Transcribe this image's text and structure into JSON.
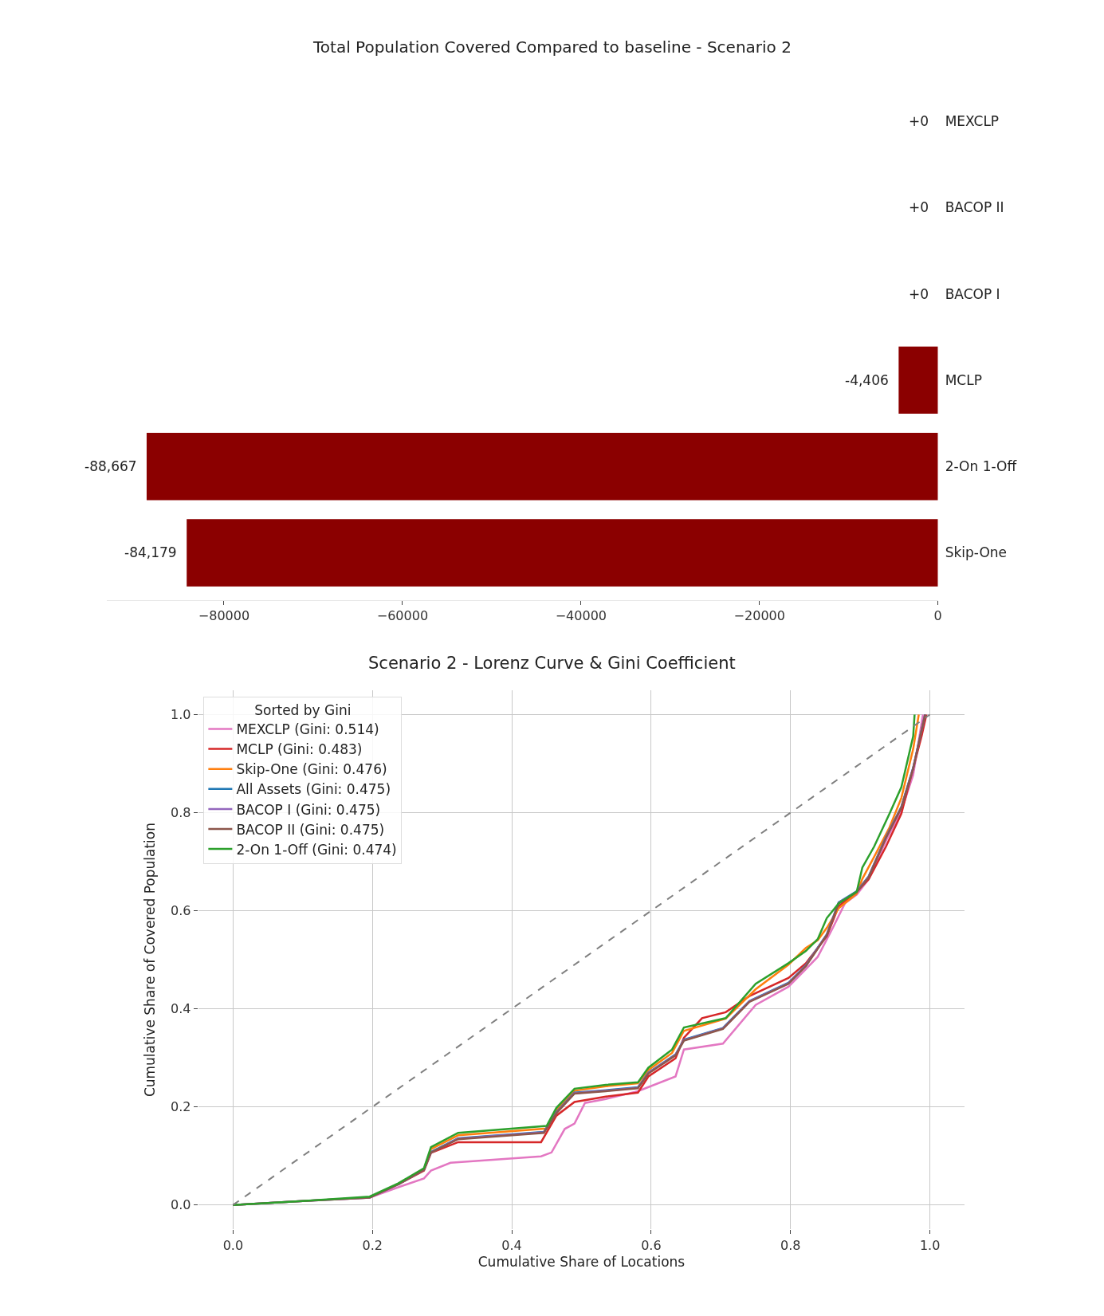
{
  "chart_data": [
    {
      "type": "bar",
      "orientation": "horizontal",
      "title": "Total Population Covered Compared to baseline - Scenario 2",
      "categories": [
        "MEXCLP",
        "BACOP II",
        "BACOP I",
        "MCLP",
        "2-On 1-Off",
        "Skip-One"
      ],
      "values": [
        0,
        0,
        0,
        -4406,
        -88667,
        -84179
      ],
      "value_labels": [
        "+0",
        "+0",
        "+0",
        "-4,406",
        "-88,667",
        "-84,179"
      ],
      "color": "#8b0000",
      "xlim": [
        -93100,
        0
      ],
      "xticks": [
        {
          "value": -80000,
          "label": "−80000"
        },
        {
          "value": -60000,
          "label": "−60000"
        },
        {
          "value": -40000,
          "label": "−40000"
        },
        {
          "value": -20000,
          "label": "−20000"
        },
        0
      ],
      "grid": false
    },
    {
      "type": "line",
      "title": "Scenario 2 - Lorenz Curve & Gini Coefficient",
      "xlabel": "Cumulative Share of Locations",
      "ylabel": "Cumulative Share of Covered Population",
      "legend_title": "Sorted by Gini",
      "legend": "top left",
      "grid": true,
      "xlim": [
        -0.05,
        1.05
      ],
      "ylim": [
        -0.05,
        1.05
      ],
      "xticks": [
        {
          "value": 0,
          "label": "0.0"
        },
        0.2,
        0.4,
        0.6,
        0.8,
        {
          "value": 1,
          "label": "1.0"
        }
      ],
      "yticks": [
        {
          "value": 0,
          "label": "0.0"
        },
        0.2,
        0.4,
        0.6,
        0.8,
        {
          "value": 1,
          "label": "1.0"
        }
      ],
      "series": [
        {
          "name": "MEXCLP (Gini: 0.514)",
          "color": "#e377c2",
          "x": [
            0,
            0.1,
            0.196,
            0.237,
            0.274,
            0.284,
            0.312,
            0.442,
            0.457,
            0.476,
            0.49,
            0.505,
            0.535,
            0.581,
            0.635,
            0.647,
            0.703,
            0.75,
            0.797,
            0.822,
            0.839,
            0.861,
            0.878,
            0.895,
            0.912,
            0.937,
            0.959,
            0.976,
            0.99
          ],
          "values": [
            0,
            0.008,
            0.015,
            0.036,
            0.054,
            0.07,
            0.086,
            0.099,
            0.107,
            0.155,
            0.166,
            0.208,
            0.216,
            0.232,
            0.262,
            0.317,
            0.329,
            0.408,
            0.445,
            0.481,
            0.506,
            0.566,
            0.615,
            0.633,
            0.664,
            0.743,
            0.804,
            0.877,
            1.0
          ]
        },
        {
          "name": "MCLP (Gini: 0.483)",
          "color": "#d62728",
          "x": [
            0.237,
            0.274,
            0.284,
            0.323,
            0.442,
            0.464,
            0.49,
            0.535,
            0.581,
            0.596,
            0.635,
            0.647,
            0.673,
            0.707,
            0.741,
            0.797,
            0.822,
            0.852,
            0.869,
            0.895,
            0.912,
            0.937,
            0.959,
            0.988,
            0.995
          ],
          "values": [
            0.042,
            0.07,
            0.106,
            0.128,
            0.128,
            0.182,
            0.21,
            0.221,
            0.229,
            0.262,
            0.299,
            0.341,
            0.381,
            0.393,
            0.426,
            0.463,
            0.493,
            0.548,
            0.609,
            0.639,
            0.664,
            0.731,
            0.798,
            0.956,
            1.0
          ]
        },
        {
          "name": "Skip-One (Gini: 0.476)",
          "color": "#ff7f0e",
          "x": [
            0.274,
            0.284,
            0.323,
            0.45,
            0.464,
            0.49,
            0.535,
            0.581,
            0.596,
            0.63,
            0.647,
            0.707,
            0.75,
            0.797,
            0.822,
            0.839,
            0.852,
            0.869,
            0.895,
            0.903,
            0.92,
            0.942,
            0.959,
            0.976,
            0.984
          ],
          "values": [
            0.073,
            0.114,
            0.142,
            0.156,
            0.193,
            0.233,
            0.242,
            0.248,
            0.275,
            0.31,
            0.355,
            0.38,
            0.44,
            0.49,
            0.524,
            0.54,
            0.565,
            0.605,
            0.635,
            0.665,
            0.71,
            0.77,
            0.83,
            0.93,
            1.0
          ]
        },
        {
          "name": "All Assets (Gini: 0.475)",
          "color": "#1f77b4",
          "x": [
            0.237,
            0.274,
            0.284,
            0.323,
            0.446,
            0.464,
            0.49,
            0.535,
            0.581,
            0.596,
            0.635,
            0.647,
            0.703,
            0.741,
            0.797,
            0.822,
            0.852,
            0.869,
            0.895,
            0.912,
            0.937,
            0.959,
            0.976,
            0.993
          ],
          "values": [
            0.042,
            0.072,
            0.108,
            0.136,
            0.149,
            0.189,
            0.229,
            0.234,
            0.24,
            0.27,
            0.307,
            0.337,
            0.361,
            0.416,
            0.453,
            0.489,
            0.552,
            0.617,
            0.64,
            0.67,
            0.751,
            0.812,
            0.892,
            1.0
          ]
        },
        {
          "name": "BACOP I (Gini: 0.475)",
          "color": "#9467bd",
          "x": [
            0,
            0.1,
            0.196,
            0.237,
            0.274,
            0.284,
            0.323,
            0.446,
            0.464,
            0.49,
            0.535,
            0.581,
            0.596,
            0.635,
            0.647,
            0.703,
            0.741,
            0.797,
            0.822,
            0.852,
            0.869,
            0.895,
            0.912,
            0.937,
            0.959,
            0.976,
            0.993
          ],
          "values": [
            0,
            0.008,
            0.015,
            0.042,
            0.072,
            0.107,
            0.135,
            0.148,
            0.188,
            0.228,
            0.233,
            0.239,
            0.269,
            0.306,
            0.336,
            0.36,
            0.415,
            0.452,
            0.488,
            0.551,
            0.616,
            0.639,
            0.669,
            0.75,
            0.811,
            0.891,
            1.0
          ]
        },
        {
          "name": "BACOP II (Gini: 0.475)",
          "color": "#8c564b",
          "x": [
            0,
            0.1,
            0.196,
            0.237,
            0.274,
            0.284,
            0.323,
            0.446,
            0.464,
            0.49,
            0.535,
            0.581,
            0.596,
            0.635,
            0.647,
            0.703,
            0.741,
            0.797,
            0.822,
            0.852,
            0.869,
            0.895,
            0.912,
            0.937,
            0.959,
            0.976,
            0.993
          ],
          "values": [
            0,
            0.008,
            0.015,
            0.042,
            0.072,
            0.107,
            0.134,
            0.147,
            0.187,
            0.227,
            0.232,
            0.238,
            0.268,
            0.305,
            0.335,
            0.359,
            0.414,
            0.451,
            0.487,
            0.55,
            0.615,
            0.638,
            0.668,
            0.749,
            0.81,
            0.89,
            1.0
          ]
        },
        {
          "name": "2-On 1-Off (Gini: 0.474)",
          "color": "#2ca02c",
          "x": [
            0,
            0.1,
            0.196,
            0.237,
            0.274,
            0.284,
            0.323,
            0.45,
            0.464,
            0.49,
            0.535,
            0.581,
            0.596,
            0.63,
            0.647,
            0.707,
            0.75,
            0.797,
            0.822,
            0.839,
            0.852,
            0.869,
            0.895,
            0.903,
            0.92,
            0.942,
            0.959,
            0.976,
            0.978
          ],
          "values": [
            0,
            0.008,
            0.017,
            0.044,
            0.075,
            0.118,
            0.147,
            0.161,
            0.198,
            0.237,
            0.245,
            0.25,
            0.28,
            0.317,
            0.362,
            0.381,
            0.451,
            0.493,
            0.518,
            0.542,
            0.585,
            0.615,
            0.639,
            0.688,
            0.731,
            0.798,
            0.852,
            0.956,
            1.0
          ]
        },
        {
          "color": "#808080",
          "line_style": "dashed",
          "x": [
            0,
            1
          ],
          "values": [
            0,
            1
          ]
        }
      ]
    }
  ]
}
